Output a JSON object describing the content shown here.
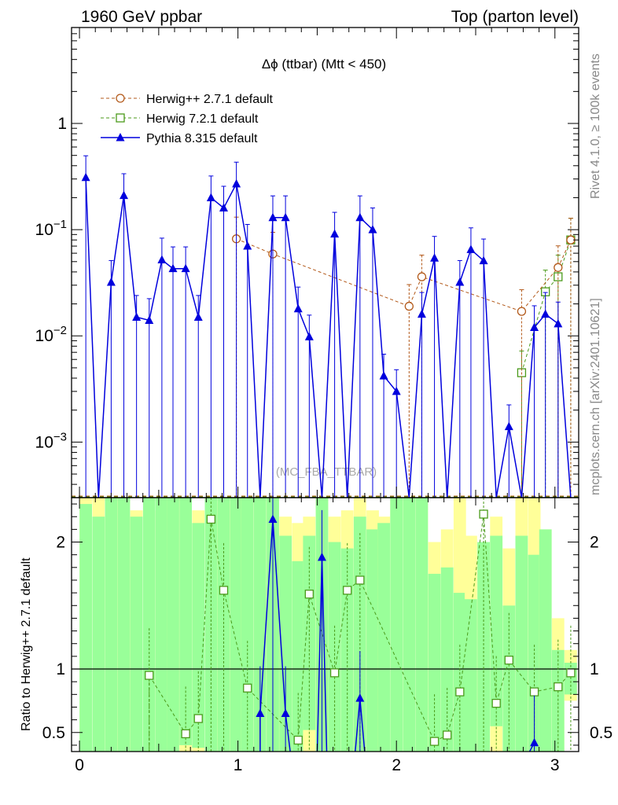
{
  "header": {
    "left_title": "1960 GeV ppbar",
    "right_title": "Top (parton level)"
  },
  "plot": {
    "title": "Δϕ (ttbar) (Mtt < 450)",
    "watermark": "(MC_FBA_TTBAR)",
    "side_label_top": "Rivet 4.1.0, ≥ 100k events",
    "side_label_bottom": "mcplots.cern.ch [arXiv:2401.10621]",
    "ratio_ylabel": "Ratio to Herwig++ 2.7.1 default"
  },
  "colors": {
    "herwigpp": "#b35a1b",
    "herwig7": "#4a9a1a",
    "pythia": "#0000dd",
    "band_green": "#99ff99",
    "band_yellow": "#ffff99"
  },
  "chart_data": [
    {
      "type": "line",
      "scale": "log",
      "title": "Δϕ (ttbar) (Mtt < 450)",
      "ylim": [
        0.0003,
        8
      ],
      "xlim": [
        -0.05,
        3.15
      ],
      "yticks": [
        {
          "value": 1,
          "label": "1"
        },
        {
          "value": 0.1,
          "label": "10^-1"
        },
        {
          "value": 0.01,
          "label": "10^-2"
        },
        {
          "value": 0.001,
          "label": "10^-3"
        }
      ],
      "legend": [
        {
          "key": "herwigpp",
          "label": "Herwig++ 2.7.1 default",
          "marker": "circle",
          "style": "dashed"
        },
        {
          "key": "herwig7",
          "label": "Herwig 7.2.1 default",
          "marker": "square",
          "style": "dashed"
        },
        {
          "key": "pythia",
          "label": "Pythia 8.315 default",
          "marker": "triangle",
          "style": "solid"
        }
      ],
      "series": [
        {
          "name": "Pythia 8.315 default",
          "key": "pythia",
          "x": [
            0.04,
            0.12,
            0.2,
            0.28,
            0.36,
            0.44,
            0.52,
            0.59,
            0.67,
            0.75,
            0.83,
            0.91,
            0.99,
            1.06,
            1.14,
            1.22,
            1.3,
            1.38,
            1.45,
            1.53,
            1.61,
            1.69,
            1.77,
            1.85,
            1.92,
            2.0,
            2.08,
            2.16,
            2.24,
            2.32,
            2.4,
            2.47,
            2.55,
            2.63,
            2.71,
            2.79,
            2.87,
            2.94,
            3.02,
            3.1
          ],
          "values": [
            0.31,
            null,
            0.032,
            0.21,
            0.015,
            0.014,
            0.052,
            0.043,
            0.043,
            0.015,
            0.2,
            0.16,
            0.27,
            0.07,
            null,
            0.13,
            0.13,
            0.018,
            0.0098,
            null,
            0.091,
            null,
            0.13,
            0.1,
            0.0042,
            0.003,
            null,
            0.016,
            0.054,
            null,
            0.032,
            0.065,
            0.051,
            null,
            0.0014,
            null,
            0.012,
            0.016,
            0.013,
            null
          ]
        },
        {
          "name": "Herwig++ 2.7.1 default",
          "key": "herwigpp",
          "x": [
            0.99,
            1.22,
            2.08,
            2.16,
            2.79,
            3.02,
            3.1
          ],
          "values": [
            0.082,
            0.059,
            0.019,
            0.036,
            0.017,
            0.044,
            0.08
          ]
        },
        {
          "name": "Herwig 7.2.1 default",
          "key": "herwig7",
          "x": [
            2.79,
            2.94,
            3.02,
            3.1
          ],
          "values": [
            0.0045,
            0.026,
            0.036,
            0.08
          ]
        }
      ]
    },
    {
      "type": "line",
      "title": "Ratio to Herwig++ 2.7.1 default",
      "ylim": [
        0.35,
        2.35
      ],
      "xticks": [
        0,
        1,
        2,
        3
      ],
      "yticks": [
        0.5,
        1,
        2
      ],
      "series": [
        {
          "name": "Herwig 7.2.1 default",
          "key": "herwig7",
          "x": [
            0.44,
            0.67,
            0.75,
            0.83,
            0.91,
            1.06,
            1.38,
            1.45,
            1.61,
            1.69,
            1.77,
            2.24,
            2.32,
            2.4,
            2.55,
            2.63,
            2.71,
            2.87,
            3.02,
            3.1
          ],
          "values": [
            0.95,
            0.49,
            0.61,
            2.18,
            1.62,
            0.85,
            0.44,
            1.59,
            0.97,
            1.62,
            1.7,
            0.43,
            0.48,
            0.82,
            2.22,
            0.73,
            1.07,
            0.82,
            0.86,
            0.97
          ]
        },
        {
          "name": "Pythia 8.315 default",
          "key": "pythia",
          "x": [
            1.14,
            1.22,
            1.3,
            1.53,
            1.77,
            2.87
          ],
          "values": [
            0.65,
            2.18,
            0.65,
            1.88,
            0.77,
            0.42
          ]
        }
      ]
    }
  ]
}
